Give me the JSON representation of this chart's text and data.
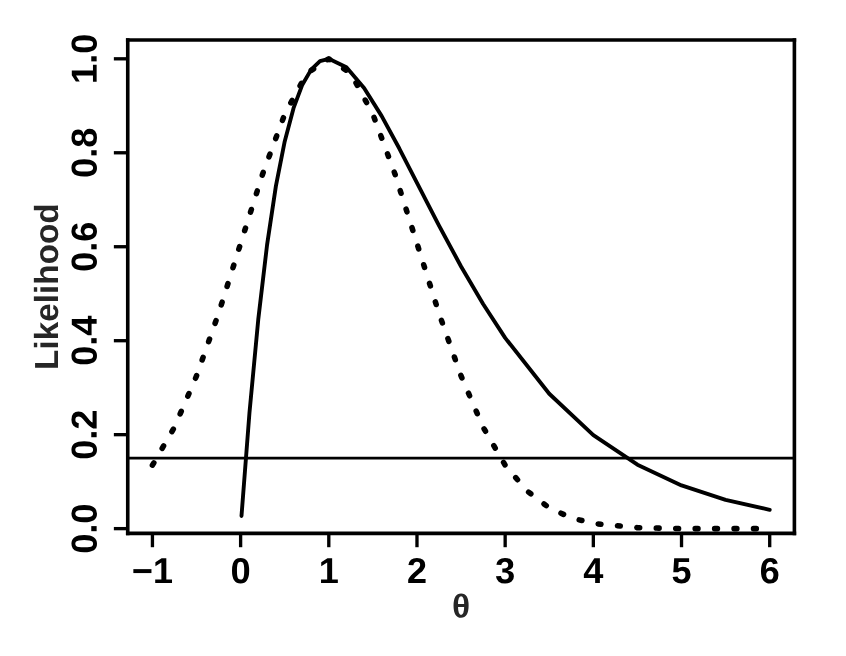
{
  "chart_data": {
    "type": "line",
    "xlabel": "θ",
    "ylabel": "Likelihood",
    "xlim": [
      -1.28,
      6.28
    ],
    "ylim": [
      -0.01,
      1.04
    ],
    "xticks": [
      {
        "value": -1,
        "label": "−1"
      },
      0,
      1,
      2,
      3,
      4,
      5,
      6
    ],
    "yticks": [
      {
        "value": 0,
        "label": "0.0"
      },
      0.2,
      0.4,
      0.6,
      0.8,
      {
        "value": 1,
        "label": "1.0"
      }
    ],
    "grid": false,
    "legend": false,
    "series": [
      {
        "color": "#000000",
        "line_style": "solid",
        "x": [
          0.01,
          0.1,
          0.2,
          0.3,
          0.4,
          0.5,
          0.6,
          0.7,
          0.8,
          0.9,
          1.0,
          1.2,
          1.4,
          1.6,
          1.8,
          2.0,
          2.25,
          2.5,
          2.75,
          3.0,
          3.5,
          4.0,
          4.5,
          5.0,
          5.5,
          6.0
        ],
        "values": [
          0.027,
          0.246,
          0.445,
          0.604,
          0.729,
          0.824,
          0.895,
          0.945,
          0.977,
          0.995,
          1.0,
          0.982,
          0.938,
          0.878,
          0.809,
          0.736,
          0.645,
          0.558,
          0.478,
          0.406,
          0.287,
          0.199,
          0.136,
          0.092,
          0.061,
          0.04
        ]
      },
      {
        "color": "#000000",
        "line_style": "dotted",
        "x": [
          -1,
          -0.75,
          -0.5,
          -0.25,
          0,
          0.25,
          0.5,
          0.75,
          1,
          1.25,
          1.5,
          1.75,
          2,
          2.25,
          2.5,
          2.75,
          3,
          3.25,
          3.5,
          3.75,
          4,
          4.5,
          5,
          5.5,
          6
        ],
        "values": [
          0.135,
          0.216,
          0.325,
          0.458,
          0.607,
          0.755,
          0.882,
          0.969,
          1.0,
          0.969,
          0.882,
          0.755,
          0.607,
          0.458,
          0.325,
          0.216,
          0.135,
          0.08,
          0.044,
          0.023,
          0.011,
          0.002,
          0.0,
          0.0,
          0.0
        ]
      }
    ],
    "ref_lines": [
      {
        "axis": "y",
        "value": 0.15,
        "color": "#000000",
        "line_style": "solid"
      }
    ]
  }
}
